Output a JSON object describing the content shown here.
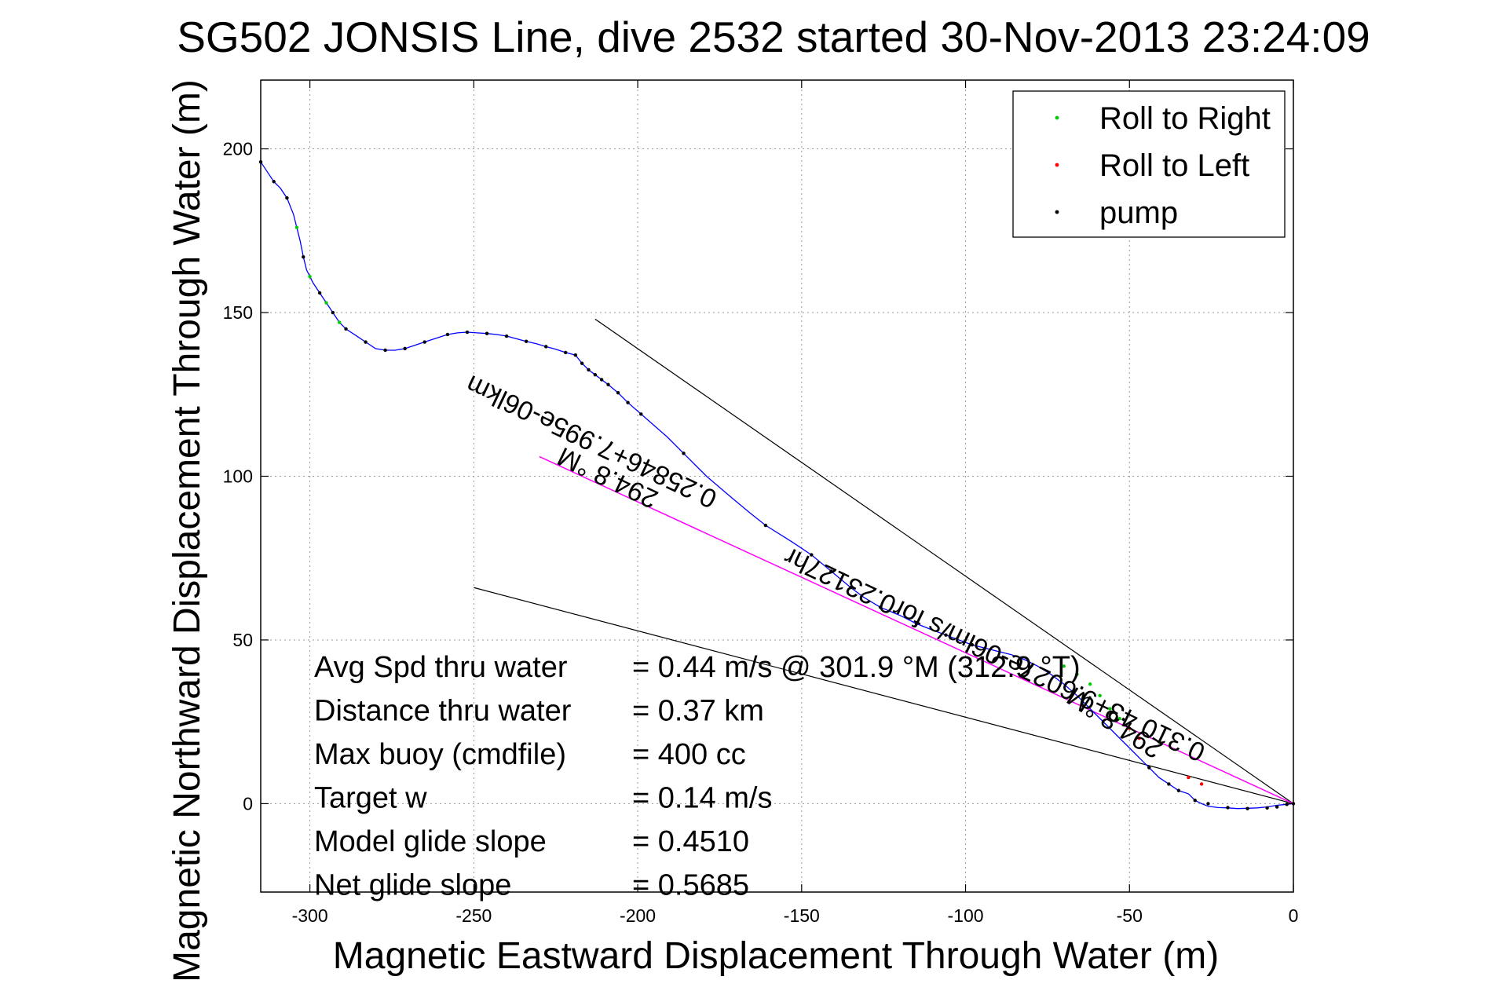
{
  "chart_data": {
    "type": "scatter",
    "title": "SG502 JONSIS Line, dive 2532 started 30-Nov-2013 23:24:09",
    "xlabel": "Magnetic Eastward Displacement Through Water (m)",
    "ylabel": "Magnetic Northward Displacement Through Water (m)",
    "xlim": [
      -315,
      0
    ],
    "ylim": [
      -27,
      221
    ],
    "x_ticks": [
      -300,
      -250,
      -200,
      -150,
      -100,
      -50,
      0
    ],
    "y_ticks": [
      0,
      50,
      100,
      150,
      200
    ],
    "grid": true,
    "legend_position": "top-right",
    "legend": [
      "Roll to Right",
      "Roll to Left",
      "pump"
    ],
    "colors": {
      "track": "#0000ff",
      "roll_right": "#00cc00",
      "roll_left": "#ff0000",
      "pump": "#000000",
      "heading_line": "#ff00ff",
      "envelope": "#000000",
      "grid": "#999999"
    },
    "track": {
      "x": [
        -315,
        -313,
        -311,
        -309,
        -307,
        -305,
        -303,
        -302,
        -301,
        -299,
        -297,
        -295,
        -293,
        -291,
        -289,
        -286,
        -283,
        -280,
        -277,
        -274,
        -271,
        -268,
        -265,
        -262,
        -258,
        -255,
        -252,
        -249,
        -246,
        -243,
        -240,
        -237,
        -234,
        -231,
        -228,
        -225,
        -222,
        -219,
        -217,
        -215,
        -213,
        -211,
        -209,
        -206,
        -203,
        -199,
        -191,
        -186,
        -179,
        -172,
        -166,
        -161,
        -153,
        -147,
        -141,
        -135,
        -131,
        -126,
        -120,
        -115,
        -110,
        -106,
        -102,
        -98,
        -94,
        -90,
        -86,
        -82,
        -78,
        -74,
        -70,
        -66,
        -62,
        -59,
        -56,
        -53,
        -50,
        -47,
        -44,
        -41,
        -38,
        -35,
        -32,
        -30,
        -28,
        -26,
        -23,
        -20,
        -17,
        -14,
        -11,
        -8,
        -5,
        -3,
        -2,
        -1,
        0
      ],
      "y": [
        196,
        193,
        190,
        188,
        185,
        180,
        172,
        167,
        163,
        159,
        156,
        153,
        150,
        147,
        145,
        143,
        141,
        139,
        138.5,
        138.5,
        139,
        140,
        141,
        142,
        143.3,
        143.8,
        144,
        143.8,
        143.6,
        143.3,
        142.8,
        142,
        141.2,
        140.5,
        139.6,
        138.8,
        137.8,
        137,
        134.5,
        132.5,
        131,
        129.5,
        128,
        125.5,
        122.5,
        119,
        112,
        107,
        100,
        94,
        89,
        85,
        80,
        76,
        71,
        66,
        63,
        60,
        57.5,
        55,
        53,
        51.5,
        50,
        48.5,
        47.5,
        46.5,
        45.5,
        44,
        42,
        39.5,
        36.5,
        33,
        29,
        26,
        23,
        20,
        17,
        14,
        11,
        8,
        6,
        4,
        3,
        1,
        0,
        -0.8,
        -1.2,
        -1.3,
        -1.5,
        -1.4,
        -1.3,
        -1,
        -0.5,
        -0.3,
        -0.2,
        -0.1,
        0
      ]
    },
    "pump_points": {
      "x": [
        -315,
        -311,
        -307,
        -302,
        -297,
        -293,
        -289,
        -283,
        -277,
        -271,
        -265,
        -258,
        -252,
        -246,
        -240,
        -234,
        -228,
        -222,
        -219,
        -217,
        -215,
        -213,
        -211,
        -209,
        -206,
        -203,
        -199,
        -186,
        -161,
        -147,
        -141,
        -135,
        -126,
        -115,
        -106,
        -98,
        -44,
        -38,
        -35,
        -30,
        -26,
        -20,
        -14,
        -8,
        -5,
        -2,
        0
      ],
      "y": [
        196,
        190,
        185,
        167,
        156,
        150,
        145,
        141,
        138.5,
        139,
        141,
        143.3,
        144,
        143.6,
        142.8,
        141.2,
        139.6,
        137.8,
        137,
        134.5,
        132.5,
        131,
        129.5,
        128,
        125.5,
        122.5,
        119,
        107,
        85,
        76,
        71,
        66,
        60,
        55,
        51.5,
        48.5,
        11,
        6,
        4,
        1,
        0,
        -1.2,
        -1.5,
        -1.3,
        -1,
        -0.2,
        0
      ]
    },
    "roll_right_points": {
      "x": [
        -304,
        -300,
        -295,
        -291,
        -70,
        -66,
        -62,
        -59,
        -56,
        -53
      ],
      "y": [
        176,
        161,
        153,
        147,
        42,
        39.5,
        36.5,
        33,
        29,
        26
      ]
    },
    "roll_left_points": {
      "x": [
        -50,
        -47,
        -32,
        -28
      ],
      "y": [
        23,
        20,
        8,
        6
      ]
    },
    "heading_line": {
      "x": [
        -230,
        0
      ],
      "y": [
        106,
        0
      ]
    },
    "envelope_lines": [
      {
        "x": [
          -213,
          0
        ],
        "y": [
          148,
          0
        ]
      },
      {
        "x": [
          -250,
          0
        ],
        "y": [
          66,
          0
        ]
      }
    ],
    "annotations": [
      {
        "text": "294.8 °M",
        "x": -208,
        "y": 102,
        "angle_deg": 205.5
      },
      {
        "text": "0.25846+7.995e-06lkm",
        "x": -213,
        "y": 113,
        "angle_deg": 205.5
      },
      {
        "text": "0.310 43+9.6027e-06lm/s for0.23127hr",
        "x": -90,
        "y": 48,
        "angle_deg": 205.5
      },
      {
        "text": "294.8 °M",
        "x": -53,
        "y": 27,
        "angle_deg": 213
      }
    ],
    "stats": [
      {
        "label": "Avg Spd thru water",
        "value": "=  0.44 m/s @ 301.9 °M (312.9 °T)"
      },
      {
        "label": "Distance thru water",
        "value": "=  0.37 km"
      },
      {
        "label": "Max buoy (cmdfile)",
        "value": "= 400 cc"
      },
      {
        "label": "Target w",
        "value": "= 0.14 m/s"
      },
      {
        "label": "Model glide slope",
        "value": "= 0.4510"
      },
      {
        "label": "Net glide slope",
        "value": "= 0.5685"
      }
    ]
  }
}
